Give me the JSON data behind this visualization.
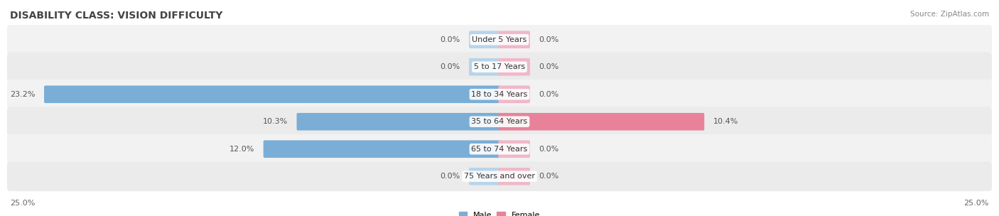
{
  "title": "DISABILITY CLASS: VISION DIFFICULTY",
  "source": "Source: ZipAtlas.com",
  "categories": [
    "Under 5 Years",
    "5 to 17 Years",
    "18 to 34 Years",
    "35 to 64 Years",
    "65 to 74 Years",
    "75 Years and over"
  ],
  "male_values": [
    0.0,
    0.0,
    23.2,
    10.3,
    12.0,
    0.0
  ],
  "female_values": [
    0.0,
    0.0,
    0.0,
    10.4,
    0.0,
    0.0
  ],
  "male_color": "#7aaed6",
  "female_color": "#e8829a",
  "male_color_light": "#b8d4ea",
  "female_color_light": "#f0b8c8",
  "row_bg_even": "#f2f2f2",
  "row_bg_odd": "#ebebeb",
  "xlim": 25.0,
  "min_stub": 1.5,
  "legend_male": "Male",
  "legend_female": "Female",
  "title_fontsize": 10,
  "label_fontsize": 8,
  "value_fontsize": 8,
  "axis_fontsize": 8,
  "source_fontsize": 7.5
}
